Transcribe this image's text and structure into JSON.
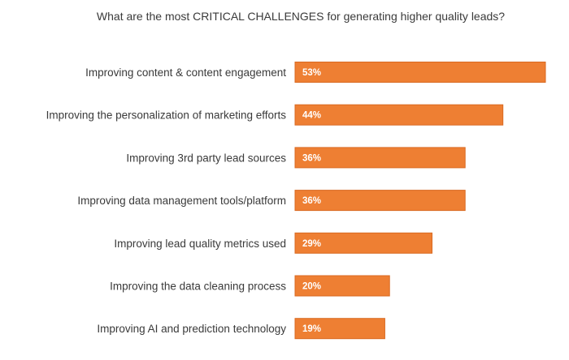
{
  "chart_data": {
    "type": "bar",
    "orientation": "horizontal",
    "title": "What are the most CRITICAL CHALLENGES for generating higher quality leads?",
    "categories": [
      "Improving content & content engagement",
      "Improving the personalization of marketing efforts",
      "Improving 3rd party lead sources",
      "Improving data management tools/platform",
      "Improving lead quality metrics used",
      "Improving the data cleaning process",
      "Improving AI and prediction technology"
    ],
    "values": [
      53,
      44,
      36,
      36,
      29,
      20,
      19
    ],
    "value_labels": [
      "53%",
      "44%",
      "36%",
      "36%",
      "29%",
      "20%",
      "19%"
    ],
    "unit": "%",
    "xlim": [
      0,
      53
    ],
    "grid": false,
    "legend": "none",
    "colors": {
      "bar": "#ee7f33",
      "bar_label": "#ffffff",
      "category_label": "#3a3a3a",
      "title": "#3a3a3a"
    }
  }
}
